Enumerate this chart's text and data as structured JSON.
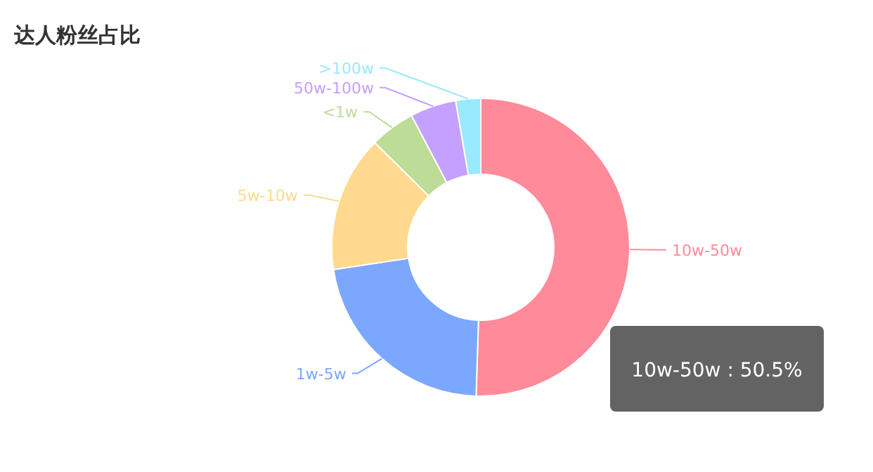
{
  "chart_data": {
    "type": "donut",
    "title": "达人粉丝占比",
    "categories": [
      "10w-50w",
      "1w-5w",
      "5w-10w",
      "<1w",
      "50w-100w",
      ">100w"
    ],
    "values": [
      50.5,
      22.1,
      14.8,
      4.9,
      5.0,
      2.7
    ],
    "colors": [
      "#ff8a9a",
      "#7ba7ff",
      "#ffd98f",
      "#bddc97",
      "#c4a0ff",
      "#99e9ff"
    ],
    "annotations": [
      "10w-50w : 50.5%"
    ]
  }
}
